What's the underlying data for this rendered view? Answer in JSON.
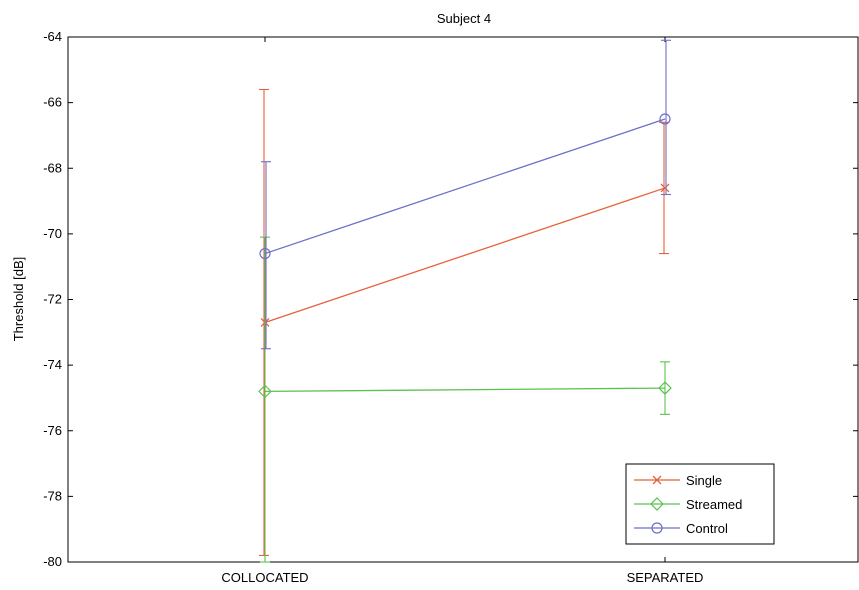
{
  "chart_data": {
    "type": "line",
    "title": "Subject 4",
    "xlabel": "",
    "ylabel": "Threshold [dB]",
    "categories": [
      "COLLOCATED",
      "SEPARATED"
    ],
    "ylim": [
      -80,
      -64
    ],
    "yticks": [
      -64,
      -66,
      -68,
      -70,
      -72,
      -74,
      -76,
      -78,
      -80
    ],
    "legend_position": "bottom-right",
    "grid": false,
    "series": [
      {
        "name": "Single",
        "color": "#e8613c",
        "marker": "x",
        "values": [
          -72.7,
          -68.6
        ],
        "error_low": [
          -79.8,
          -70.6
        ],
        "error_high": [
          -65.6,
          -66.6
        ]
      },
      {
        "name": "Streamed",
        "color": "#5cc24f",
        "marker": "diamond",
        "values": [
          -74.8,
          -74.7
        ],
        "error_low": [
          -80.0,
          -75.5
        ],
        "error_high": [
          -70.1,
          -73.9
        ]
      },
      {
        "name": "Control",
        "color": "#6b6fc9",
        "marker": "circle",
        "values": [
          -70.6,
          -66.5
        ],
        "error_low": [
          -73.5,
          -68.8
        ],
        "error_high": [
          -67.8,
          -64.1
        ]
      }
    ]
  }
}
